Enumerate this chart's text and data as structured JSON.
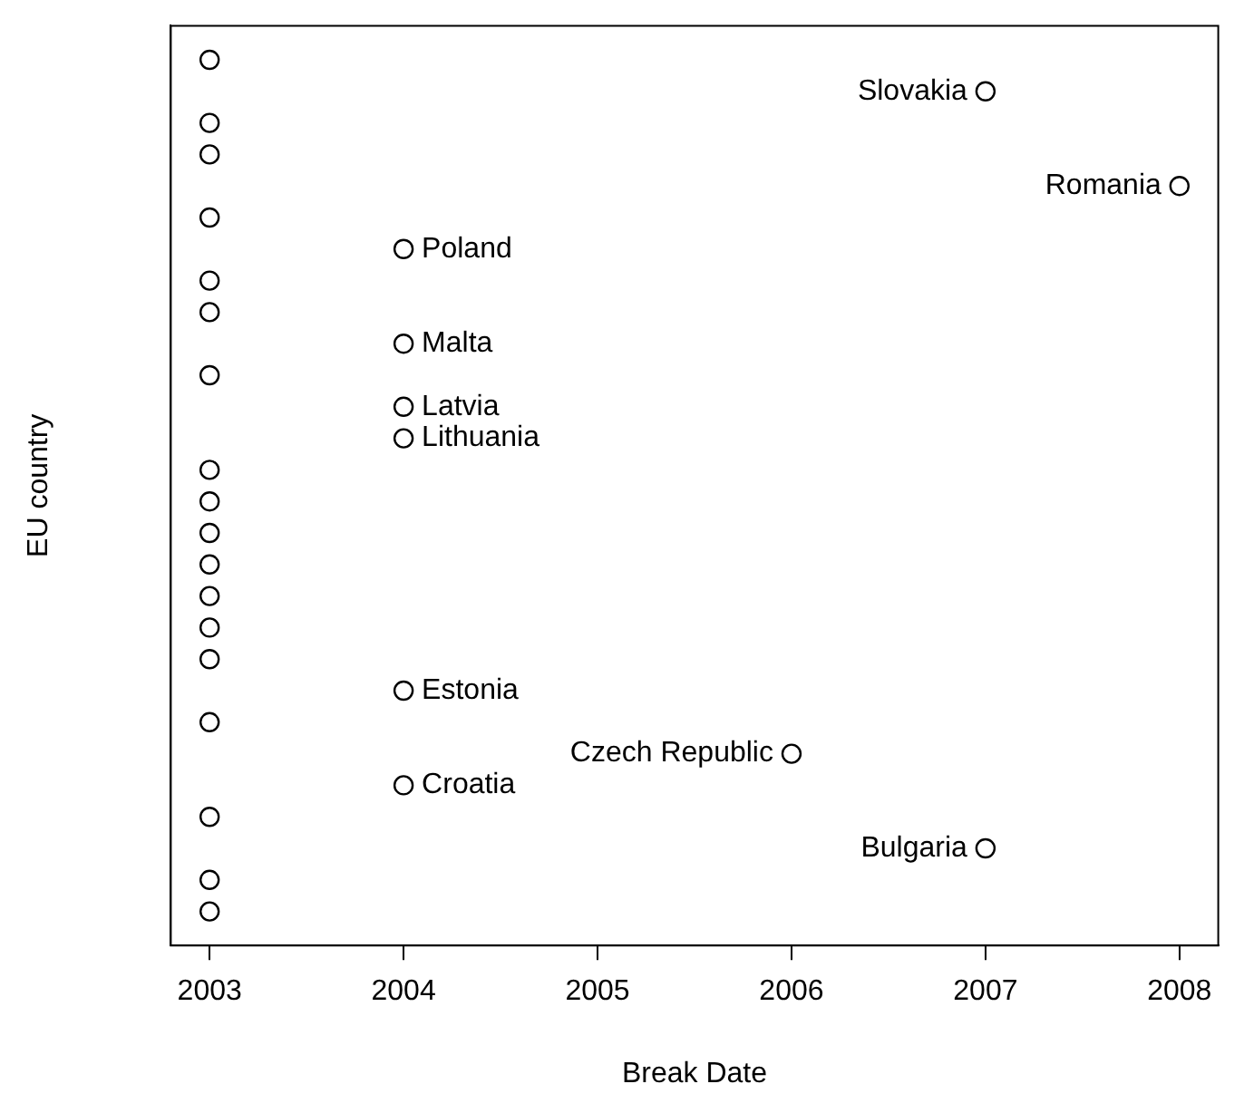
{
  "chart_data": {
    "type": "scatter",
    "orientation": "horizontal",
    "xlabel": "Break Date",
    "ylabel": "EU country",
    "categories": [
      null,
      "Slovakia",
      null,
      null,
      "Romania",
      null,
      "Poland",
      null,
      null,
      "Malta",
      null,
      "Latvia",
      "Lithuania",
      null,
      null,
      null,
      null,
      null,
      null,
      null,
      "Estonia",
      null,
      "Czech Republic",
      "Croatia",
      null,
      "Bulgaria",
      null,
      null
    ],
    "values": [
      2003,
      2007,
      2003,
      2003,
      2008,
      2003,
      2004,
      2003,
      2003,
      2004,
      2003,
      2004,
      2004,
      2003,
      2003,
      2003,
      2003,
      2003,
      2003,
      2003,
      2004,
      2003,
      2006,
      2004,
      2003,
      2007,
      2003,
      2003
    ],
    "color": "#000000",
    "marker": "circle",
    "xlim": [
      2002.8,
      2008.2
    ],
    "xticks": [
      2003,
      2004,
      2005,
      2006,
      2007,
      2008
    ],
    "tick_labels": "x",
    "grid": false,
    "legend": false
  }
}
